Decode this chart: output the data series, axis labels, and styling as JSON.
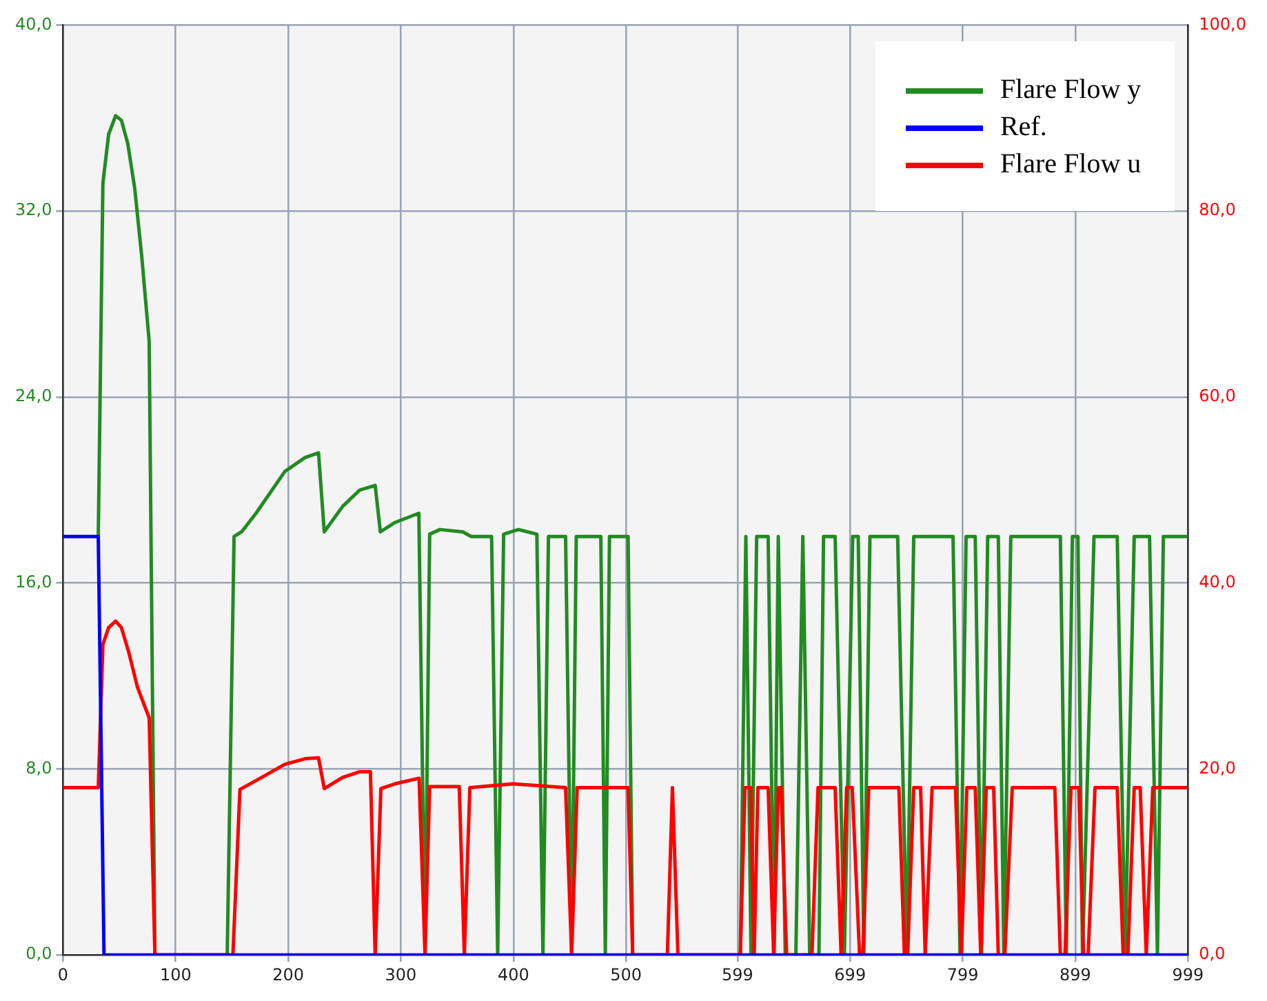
{
  "chart_data": {
    "type": "line",
    "legend": "top right",
    "grid": true,
    "marker": "none",
    "line_style": "solid",
    "xlim": [
      0,
      999
    ],
    "xticks": [
      0,
      100,
      200,
      300,
      400,
      500,
      599,
      699,
      799,
      899,
      999
    ],
    "ylim": [
      0,
      40
    ],
    "yticks": [
      {
        "value": 0,
        "label": "0,0"
      },
      {
        "value": 8,
        "label": "8,0"
      },
      {
        "value": 16,
        "label": "16,0"
      },
      {
        "value": 24,
        "label": "24,0"
      },
      {
        "value": 32,
        "label": "32,0"
      },
      {
        "value": 40,
        "label": "40,0"
      }
    ],
    "y2lim": [
      0,
      100
    ],
    "y2ticks": [
      {
        "value": 0,
        "label": "0,0"
      },
      {
        "value": 20,
        "label": "20,0"
      },
      {
        "value": 40,
        "label": "40,0"
      },
      {
        "value": 60,
        "label": "60,0"
      },
      {
        "value": 80,
        "label": "80,0"
      },
      {
        "value": 100,
        "label": "100,0"
      }
    ],
    "series": [
      {
        "name": "Flare Flow y",
        "color": "#228b22",
        "x": [
          31.3,
          35.4,
          40.5,
          46.7,
          51.9,
          57.5,
          63.6,
          69.8,
          76.5,
          81.6,
          145.8,
          151.9,
          158.6,
          171.4,
          197,
          215,
          226.9,
          232,
          248.4,
          263.6,
          277.2,
          281.8,
          294.6,
          316,
          321.5,
          325.6,
          334.7,
          355,
          362.5,
          371.6,
          380.6,
          386,
          391.3,
          404.4,
          420.8,
          426.2,
          431.1,
          446.3,
          451.7,
          455.8,
          477.6,
          481.6,
          485.3,
          501.8,
          505.9,
          601.5,
          606.4,
          611,
          616,
          626.2,
          631.5,
          635.2,
          641.4,
          650.8,
          657,
          663.1,
          671.3,
          675.4,
          685.7,
          693.9,
          701.3,
          706.2,
          711.2,
          716.6,
          741.2,
          749.4,
          755.5,
          790.4,
          796.6,
          802,
          810.1,
          815.8,
          821.2,
          830.6,
          835.5,
          841.7,
          885.7,
          891,
          896.4,
          901.3,
          905.4,
          915.6,
          936.2,
          943.2,
          951.3,
          964.9,
          971.9,
          977.2,
          999
        ],
        "values": [
          18,
          33.2,
          35.3,
          36.1,
          35.9,
          34.9,
          33,
          30.1,
          26.4,
          0,
          0,
          18,
          18.2,
          19,
          20.8,
          21.4,
          21.6,
          18.2,
          19.3,
          20,
          20.2,
          18.2,
          18.6,
          19,
          0,
          18.1,
          18.3,
          18.2,
          18,
          18,
          18,
          0,
          18.1,
          18.3,
          18.1,
          0,
          18,
          18,
          0,
          18,
          18,
          0,
          18,
          18,
          0,
          0,
          18,
          0,
          18,
          18,
          0,
          18,
          0,
          0,
          18,
          0,
          0,
          18,
          18,
          0,
          18,
          18,
          0,
          18,
          18,
          0,
          18,
          18,
          0,
          18,
          18,
          0,
          18,
          18,
          0,
          18,
          18,
          0,
          18,
          18,
          0,
          18,
          18,
          0,
          18,
          18,
          0,
          18,
          18
        ]
      },
      {
        "name": "Ref.",
        "color": "#0000ff",
        "x": [
          0,
          31.3,
          36.4,
          999
        ],
        "values": [
          18,
          18,
          0,
          0
        ]
      },
      {
        "name": "Flare Flow u",
        "color": "#ff0000",
        "axis": "y2",
        "x": [
          0,
          31.3,
          35.4,
          40.5,
          46.7,
          51.9,
          58.5,
          66.1,
          76.5,
          81.6,
          150.9,
          157.1,
          176.5,
          197,
          215,
          226.9,
          232,
          248.4,
          263.6,
          273,
          277.2,
          282.3,
          294.6,
          316.2,
          321.5,
          325.6,
          351.9,
          356.4,
          361.3,
          400,
          446.3,
          451.7,
          456.6,
          501.8,
          505.9,
          536.7,
          541.2,
          546.1,
          601.5,
          605.6,
          610.6,
          613.8,
          617.1,
          626.2,
          631.1,
          635.2,
          637.6,
          642.6,
          665.1,
          670.5,
          685.7,
          691,
          695.9,
          700.9,
          707.4,
          710.3,
          715.6,
          742.3,
          747.2,
          750.1,
          755.5,
          761.6,
          765.7,
          771.8,
          792.5,
          797.8,
          802.7,
          810.1,
          815,
          819.9,
          826.5,
          830.6,
          836.4,
          843,
          880.8,
          885.7,
          889.8,
          895.2,
          902.1,
          906.3,
          910.4,
          916.5,
          936.2,
          941.5,
          945.7,
          951.3,
          956.6,
          962,
          967.8,
          999
        ],
        "values": [
          18,
          18,
          33.4,
          35.2,
          35.9,
          35.2,
          32.5,
          28.8,
          25.5,
          0,
          0,
          17.8,
          19.1,
          20.5,
          21.1,
          21.2,
          17.9,
          19.1,
          19.7,
          19.7,
          0,
          17.9,
          18.4,
          19,
          0,
          18.1,
          18.1,
          0,
          18,
          18.4,
          18,
          0,
          18,
          18,
          0,
          0,
          18,
          0,
          0,
          18,
          18,
          0,
          18,
          18,
          0,
          18,
          18,
          0,
          0,
          18,
          18,
          0,
          18,
          18,
          0,
          0,
          18,
          18,
          0,
          0,
          18,
          18,
          0,
          18,
          18,
          0,
          18,
          18,
          0,
          18,
          18,
          0,
          0,
          18,
          18,
          0,
          0,
          18,
          18,
          0,
          0,
          18,
          18,
          0,
          0,
          18,
          18,
          0,
          18,
          18
        ]
      }
    ]
  }
}
